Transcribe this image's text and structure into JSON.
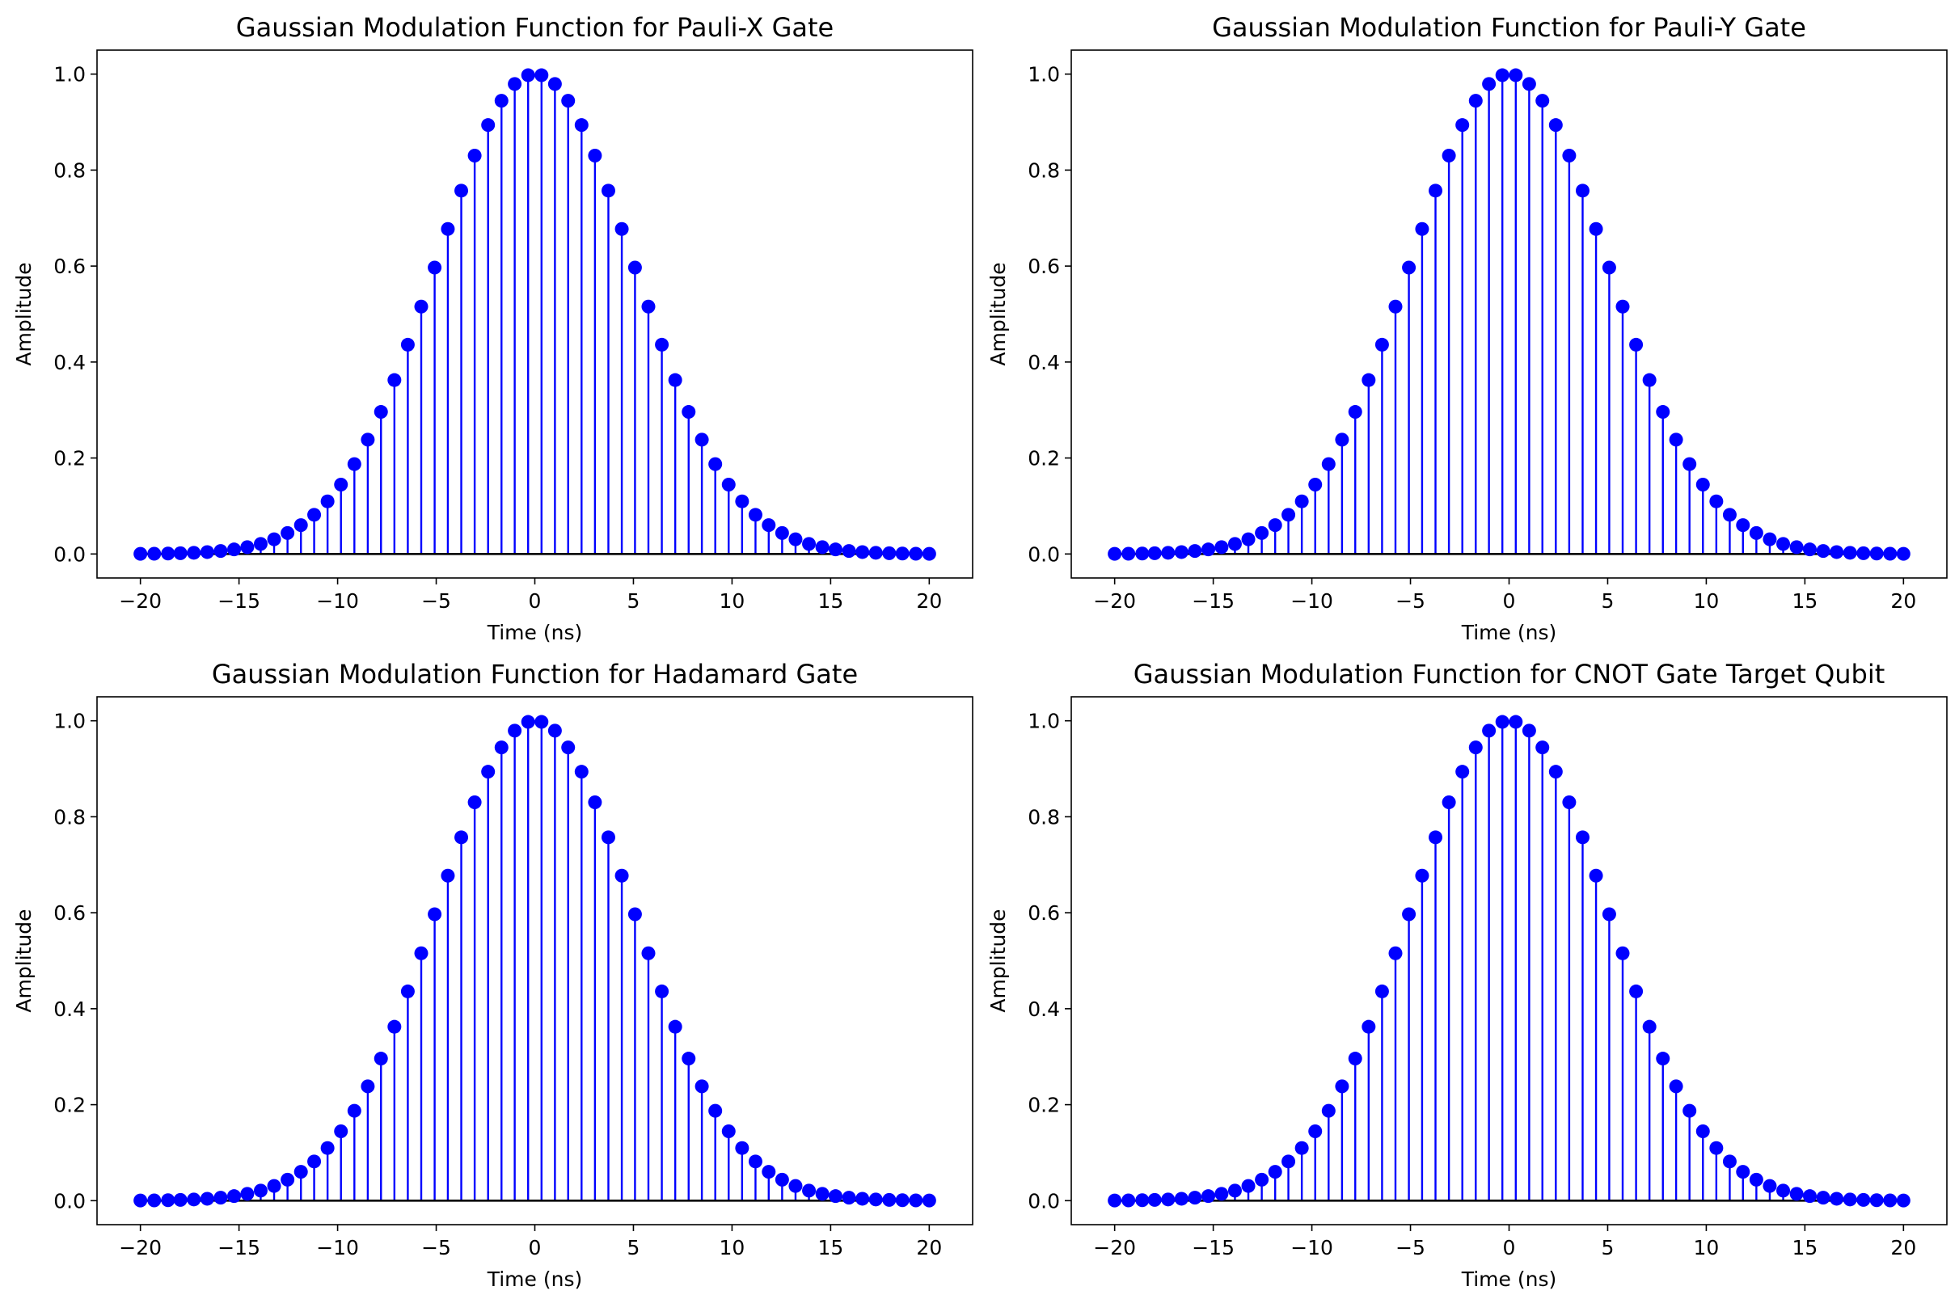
{
  "x_axis": {
    "ticks": [
      -20,
      -15,
      -10,
      -5,
      0,
      5,
      10,
      15,
      20
    ],
    "tick_labels": [
      "−20",
      "−15",
      "−10",
      "−5",
      "0",
      "5",
      "10",
      "15",
      "20"
    ]
  },
  "y_axis": {
    "ticks": [
      0.0,
      0.2,
      0.4,
      0.6,
      0.8,
      1.0
    ],
    "tick_labels": [
      "0.0",
      "0.2",
      "0.4",
      "0.6",
      "0.8",
      "1.0"
    ]
  },
  "colors": {
    "stem": "#0000ff",
    "marker": "#0000ff",
    "baseline": "#000000",
    "frame": "#000000",
    "background": "#ffffff"
  },
  "chart_data": [
    {
      "type": "stem",
      "title": "Gaussian Modulation Function for Pauli-X Gate",
      "xlabel": "Time (ns)",
      "ylabel": "Amplitude",
      "xlim": [
        -22.2,
        22.2
      ],
      "ylim": [
        -0.05,
        1.05
      ],
      "grid": false,
      "function": "y = exp(-x^2 / (2*5^2))",
      "x": [
        -20.0,
        -19.3,
        -18.6,
        -17.97,
        -17.29,
        -16.61,
        -15.93,
        -15.25,
        -14.58,
        -13.9,
        -13.22,
        -12.54,
        -11.86,
        -11.19,
        -10.51,
        -9.83,
        -9.15,
        -8.47,
        -7.8,
        -7.12,
        -6.44,
        -5.76,
        -5.08,
        -4.41,
        -3.73,
        -3.05,
        -2.37,
        -1.69,
        -1.02,
        -0.34,
        0.34,
        1.02,
        1.69,
        2.37,
        3.05,
        3.73,
        4.41,
        5.08,
        5.76,
        6.44,
        7.12,
        7.8,
        8.47,
        9.15,
        9.83,
        10.51,
        11.19,
        11.86,
        12.54,
        13.22,
        13.9,
        14.58,
        15.25,
        15.93,
        16.61,
        17.29,
        17.97,
        18.64,
        19.32,
        20.0
      ],
      "y": [
        0.0003,
        0.0006,
        0.001,
        0.0016,
        0.0025,
        0.004,
        0.0062,
        0.0095,
        0.0142,
        0.021,
        0.0306,
        0.0437,
        0.0601,
        0.0817,
        0.1097,
        0.1445,
        0.1873,
        0.2382,
        0.2961,
        0.3624,
        0.4361,
        0.5156,
        0.5968,
        0.6773,
        0.7572,
        0.8302,
        0.8939,
        0.9445,
        0.9794,
        0.9977,
        0.9977,
        0.9794,
        0.9445,
        0.8939,
        0.8302,
        0.7572,
        0.6773,
        0.5968,
        0.5156,
        0.4361,
        0.3624,
        0.2961,
        0.2382,
        0.1873,
        0.1445,
        0.1097,
        0.0817,
        0.0601,
        0.0437,
        0.0306,
        0.021,
        0.0142,
        0.0095,
        0.0062,
        0.004,
        0.0025,
        0.0016,
        0.001,
        0.0006,
        0.0003
      ]
    },
    {
      "type": "stem",
      "title": "Gaussian Modulation Function for Pauli-Y Gate",
      "xlabel": "Time (ns)",
      "ylabel": "Amplitude",
      "xlim": [
        -22.2,
        22.2
      ],
      "ylim": [
        -0.05,
        1.05
      ],
      "grid": false,
      "function": "y = exp(-x^2 / (2*5^2))",
      "x": [
        -20.0,
        -19.3,
        -18.6,
        -17.97,
        -17.29,
        -16.61,
        -15.93,
        -15.25,
        -14.58,
        -13.9,
        -13.22,
        -12.54,
        -11.86,
        -11.19,
        -10.51,
        -9.83,
        -9.15,
        -8.47,
        -7.8,
        -7.12,
        -6.44,
        -5.76,
        -5.08,
        -4.41,
        -3.73,
        -3.05,
        -2.37,
        -1.69,
        -1.02,
        -0.34,
        0.34,
        1.02,
        1.69,
        2.37,
        3.05,
        3.73,
        4.41,
        5.08,
        5.76,
        6.44,
        7.12,
        7.8,
        8.47,
        9.15,
        9.83,
        10.51,
        11.19,
        11.86,
        12.54,
        13.22,
        13.9,
        14.58,
        15.25,
        15.93,
        16.61,
        17.29,
        17.97,
        18.64,
        19.32,
        20.0
      ],
      "y": [
        0.0003,
        0.0006,
        0.001,
        0.0016,
        0.0025,
        0.004,
        0.0062,
        0.0095,
        0.0142,
        0.021,
        0.0306,
        0.0437,
        0.0601,
        0.0817,
        0.1097,
        0.1445,
        0.1873,
        0.2382,
        0.2961,
        0.3624,
        0.4361,
        0.5156,
        0.5968,
        0.6773,
        0.7572,
        0.8302,
        0.8939,
        0.9445,
        0.9794,
        0.9977,
        0.9977,
        0.9794,
        0.9445,
        0.8939,
        0.8302,
        0.7572,
        0.6773,
        0.5968,
        0.5156,
        0.4361,
        0.3624,
        0.2961,
        0.2382,
        0.1873,
        0.1445,
        0.1097,
        0.0817,
        0.0601,
        0.0437,
        0.0306,
        0.021,
        0.0142,
        0.0095,
        0.0062,
        0.004,
        0.0025,
        0.0016,
        0.001,
        0.0006,
        0.0003
      ]
    },
    {
      "type": "stem",
      "title": "Gaussian Modulation Function for Hadamard Gate",
      "xlabel": "Time (ns)",
      "ylabel": "Amplitude",
      "xlim": [
        -22.2,
        22.2
      ],
      "ylim": [
        -0.05,
        1.05
      ],
      "grid": false,
      "function": "y = exp(-x^2 / (2*5^2))",
      "x": [
        -20.0,
        -19.3,
        -18.6,
        -17.97,
        -17.29,
        -16.61,
        -15.93,
        -15.25,
        -14.58,
        -13.9,
        -13.22,
        -12.54,
        -11.86,
        -11.19,
        -10.51,
        -9.83,
        -9.15,
        -8.47,
        -7.8,
        -7.12,
        -6.44,
        -5.76,
        -5.08,
        -4.41,
        -3.73,
        -3.05,
        -2.37,
        -1.69,
        -1.02,
        -0.34,
        0.34,
        1.02,
        1.69,
        2.37,
        3.05,
        3.73,
        4.41,
        5.08,
        5.76,
        6.44,
        7.12,
        7.8,
        8.47,
        9.15,
        9.83,
        10.51,
        11.19,
        11.86,
        12.54,
        13.22,
        13.9,
        14.58,
        15.25,
        15.93,
        16.61,
        17.29,
        17.97,
        18.64,
        19.32,
        20.0
      ],
      "y": [
        0.0003,
        0.0006,
        0.001,
        0.0016,
        0.0025,
        0.004,
        0.0062,
        0.0095,
        0.0142,
        0.021,
        0.0306,
        0.0437,
        0.0601,
        0.0817,
        0.1097,
        0.1445,
        0.1873,
        0.2382,
        0.2961,
        0.3624,
        0.4361,
        0.5156,
        0.5968,
        0.6773,
        0.7572,
        0.8302,
        0.8939,
        0.9445,
        0.9794,
        0.9977,
        0.9977,
        0.9794,
        0.9445,
        0.8939,
        0.8302,
        0.7572,
        0.6773,
        0.5968,
        0.5156,
        0.4361,
        0.3624,
        0.2961,
        0.2382,
        0.1873,
        0.1445,
        0.1097,
        0.0817,
        0.0601,
        0.0437,
        0.0306,
        0.021,
        0.0142,
        0.0095,
        0.0062,
        0.004,
        0.0025,
        0.0016,
        0.001,
        0.0006,
        0.0003
      ]
    },
    {
      "type": "stem",
      "title": "Gaussian Modulation Function for CNOT Gate Target Qubit",
      "xlabel": "Time (ns)",
      "ylabel": "Amplitude",
      "xlim": [
        -22.2,
        22.2
      ],
      "ylim": [
        -0.05,
        1.05
      ],
      "grid": false,
      "function": "y = exp(-x^2 / (2*5^2))",
      "x": [
        -20.0,
        -19.3,
        -18.6,
        -17.97,
        -17.29,
        -16.61,
        -15.93,
        -15.25,
        -14.58,
        -13.9,
        -13.22,
        -12.54,
        -11.86,
        -11.19,
        -10.51,
        -9.83,
        -9.15,
        -8.47,
        -7.8,
        -7.12,
        -6.44,
        -5.76,
        -5.08,
        -4.41,
        -3.73,
        -3.05,
        -2.37,
        -1.69,
        -1.02,
        -0.34,
        0.34,
        1.02,
        1.69,
        2.37,
        3.05,
        3.73,
        4.41,
        5.08,
        5.76,
        6.44,
        7.12,
        7.8,
        8.47,
        9.15,
        9.83,
        10.51,
        11.19,
        11.86,
        12.54,
        13.22,
        13.9,
        14.58,
        15.25,
        15.93,
        16.61,
        17.29,
        17.97,
        18.64,
        19.32,
        20.0
      ],
      "y": [
        0.0003,
        0.0006,
        0.001,
        0.0016,
        0.0025,
        0.004,
        0.0062,
        0.0095,
        0.0142,
        0.021,
        0.0306,
        0.0437,
        0.0601,
        0.0817,
        0.1097,
        0.1445,
        0.1873,
        0.2382,
        0.2961,
        0.3624,
        0.4361,
        0.5156,
        0.5968,
        0.6773,
        0.7572,
        0.8302,
        0.8939,
        0.9445,
        0.9794,
        0.9977,
        0.9977,
        0.9794,
        0.9445,
        0.8939,
        0.8302,
        0.7572,
        0.6773,
        0.5968,
        0.5156,
        0.4361,
        0.3624,
        0.2961,
        0.2382,
        0.1873,
        0.1445,
        0.1097,
        0.0817,
        0.0601,
        0.0437,
        0.0306,
        0.021,
        0.0142,
        0.0095,
        0.0062,
        0.004,
        0.0025,
        0.0016,
        0.001,
        0.0006,
        0.0003
      ]
    }
  ]
}
